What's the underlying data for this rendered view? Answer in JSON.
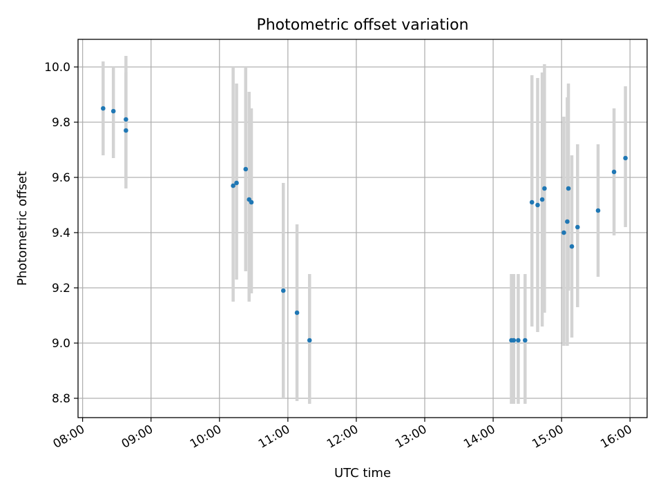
{
  "chart_data": {
    "type": "scatter",
    "title": "Photometric offset variation",
    "xlabel": "UTC time",
    "ylabel": "Photometric offset",
    "grid": true,
    "x_axis_type": "time",
    "xlim": [
      "07:56",
      "16:15"
    ],
    "ylim": [
      8.73,
      10.1
    ],
    "x_ticks": [
      "08:00",
      "09:00",
      "10:00",
      "11:00",
      "12:00",
      "13:00",
      "14:00",
      "15:00",
      "16:00"
    ],
    "y_ticks": [
      8.8,
      9.0,
      9.2,
      9.4,
      9.6,
      9.8,
      10.0
    ],
    "colors": {
      "point": "#1f77b4",
      "errorbar": "#d3d3d3",
      "grid": "#b0b0b0"
    },
    "points": [
      {
        "x": "08:18",
        "y": 9.85,
        "err_low": 9.68,
        "err_high": 10.02
      },
      {
        "x": "08:27",
        "y": 9.84,
        "err_low": 9.67,
        "err_high": 10.0
      },
      {
        "x": "08:38",
        "y": 9.81,
        "err_low": 9.59,
        "err_high": 10.04
      },
      {
        "x": "08:38",
        "y": 9.77,
        "err_low": 9.56,
        "err_high": 9.98
      },
      {
        "x": "10:12",
        "y": 9.57,
        "err_low": 9.15,
        "err_high": 10.0
      },
      {
        "x": "10:15",
        "y": 9.58,
        "err_low": 9.23,
        "err_high": 9.94
      },
      {
        "x": "10:23",
        "y": 9.63,
        "err_low": 9.26,
        "err_high": 10.0
      },
      {
        "x": "10:26",
        "y": 9.52,
        "err_low": 9.15,
        "err_high": 9.91
      },
      {
        "x": "10:28",
        "y": 9.51,
        "err_low": 9.18,
        "err_high": 9.85
      },
      {
        "x": "10:56",
        "y": 9.19,
        "err_low": 8.8,
        "err_high": 9.58
      },
      {
        "x": "11:08",
        "y": 9.11,
        "err_low": 8.79,
        "err_high": 9.43
      },
      {
        "x": "11:19",
        "y": 9.01,
        "err_low": 8.78,
        "err_high": 9.25
      },
      {
        "x": "14:16",
        "y": 9.01,
        "err_low": 8.78,
        "err_high": 9.25
      },
      {
        "x": "14:18",
        "y": 9.01,
        "err_low": 8.78,
        "err_high": 9.25
      },
      {
        "x": "14:22",
        "y": 9.01,
        "err_low": 8.78,
        "err_high": 9.25
      },
      {
        "x": "14:28",
        "y": 9.01,
        "err_low": 8.78,
        "err_high": 9.25
      },
      {
        "x": "14:34",
        "y": 9.51,
        "err_low": 9.06,
        "err_high": 9.97
      },
      {
        "x": "14:39",
        "y": 9.5,
        "err_low": 9.04,
        "err_high": 9.96
      },
      {
        "x": "14:43",
        "y": 9.52,
        "err_low": 9.06,
        "err_high": 9.98
      },
      {
        "x": "14:45",
        "y": 9.56,
        "err_low": 9.11,
        "err_high": 10.01
      },
      {
        "x": "15:02",
        "y": 9.4,
        "err_low": 8.99,
        "err_high": 9.82
      },
      {
        "x": "15:05",
        "y": 9.44,
        "err_low": 8.99,
        "err_high": 9.89
      },
      {
        "x": "15:06",
        "y": 9.56,
        "err_low": 9.19,
        "err_high": 9.94
      },
      {
        "x": "15:09",
        "y": 9.35,
        "err_low": 9.02,
        "err_high": 9.68
      },
      {
        "x": "15:14",
        "y": 9.42,
        "err_low": 9.13,
        "err_high": 9.72
      },
      {
        "x": "15:32",
        "y": 9.48,
        "err_low": 9.24,
        "err_high": 9.72
      },
      {
        "x": "15:46",
        "y": 9.62,
        "err_low": 9.39,
        "err_high": 9.85
      },
      {
        "x": "15:56",
        "y": 9.67,
        "err_low": 9.42,
        "err_high": 9.93
      }
    ]
  }
}
